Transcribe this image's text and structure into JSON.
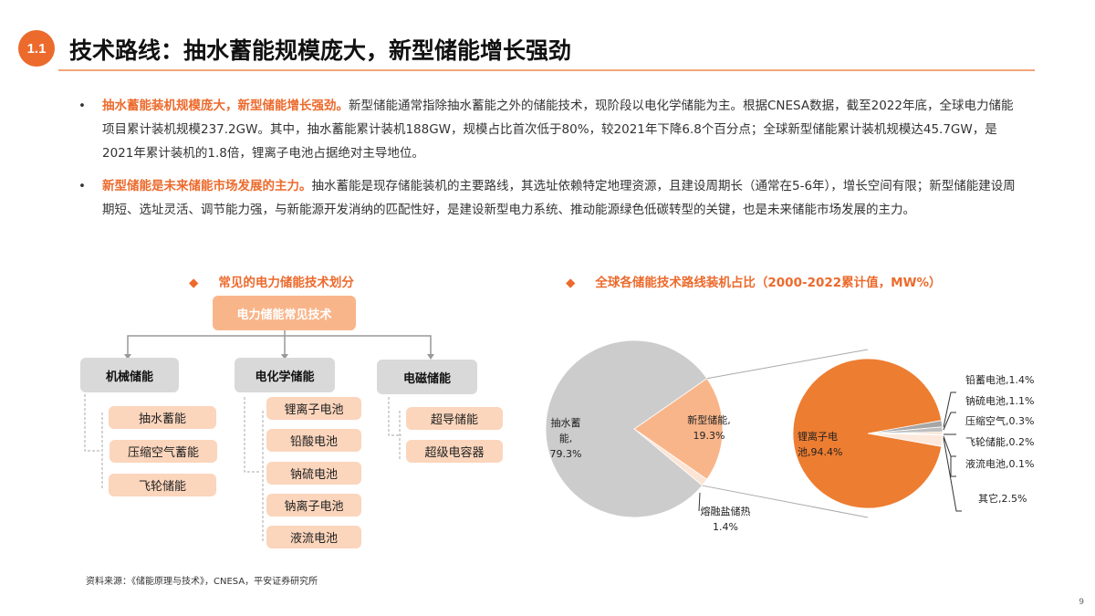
{
  "header": {
    "badge": "1.1",
    "title": "技术路线：抽水蓄能规模庞大，新型储能增长强劲"
  },
  "bullets": [
    {
      "marker": "•",
      "highlight": "抽水蓄能装机规模庞大，新型储能增长强劲。",
      "text": "新型储能通常指除抽水蓄能之外的储能技术，现阶段以电化学储能为主。根据CNESA数据，截至2022年底，全球电力储能项目累计装机规模237.2GW。其中，抽水蓄能累计装机188GW，规模占比首次低于80%，较2021年下降6.8个百分点；全球新型储能累计装机规模达45.7GW，是2021年累计装机的1.8倍，锂离子电池占据绝对主导地位。"
    },
    {
      "marker": "•",
      "highlight": "新型储能是未来储能市场发展的主力。",
      "text": "抽水蓄能是现存储能装机的主要路线，其选址依赖特定地理资源，且建设周期长（通常在5-6年），增长空间有限；新型储能建设周期短、选址灵活、调节能力强，与新能源开发消纳的匹配性好，是建设新型电力系统、推动能源绿色低碳转型的关键，也是未来储能市场发展的主力。"
    }
  ],
  "diagram": {
    "marker": "◆",
    "title": "常见的电力储能技术划分",
    "root": "电力储能常见技术",
    "categories": [
      {
        "label": "机械储能",
        "items": [
          "抽水蓄能",
          "压缩空气蓄能",
          "飞轮储能"
        ]
      },
      {
        "label": "电化学储能",
        "items": [
          "锂离子电池",
          "铅酸电池",
          "钠硫电池",
          "钠离子电池",
          "液流电池"
        ]
      },
      {
        "label": "电磁储能",
        "items": [
          "超导储能",
          "超级电容器"
        ]
      }
    ]
  },
  "chart_data": {
    "type": "pie-of-pie",
    "marker": "◆",
    "title": "全球各储能技术路线装机占比（2000-2022累计值，MW%）",
    "main": [
      {
        "name": "抽水蓄能",
        "label": "抽水蓄能,",
        "value": 79.3,
        "color": "#cccccc"
      },
      {
        "name": "新型储能",
        "label": "新型储能,",
        "value": 19.3,
        "color": "#f9b58a"
      },
      {
        "name": "熔融盐储热",
        "label": "熔融盐储热",
        "value": 1.4,
        "color": "#fce4d4"
      }
    ],
    "secondary": [
      {
        "name": "锂离子电池",
        "value": 94.4,
        "color": "#ed7d31"
      },
      {
        "name": "铅蓄电池",
        "value": 1.4,
        "color": "#a6a6a6"
      },
      {
        "name": "钠硫电池",
        "value": 1.1,
        "color": "#bfbfbf"
      },
      {
        "name": "压缩空气",
        "value": 0.3,
        "color": "#f4b183"
      },
      {
        "name": "飞轮储能",
        "value": 0.2,
        "color": "#f8cbad"
      },
      {
        "name": "液流电池",
        "value": 0.1,
        "color": "#fbe5d6"
      },
      {
        "name": "其它",
        "value": 2.5,
        "color": "#fde9dc"
      }
    ],
    "secondary_labels": [
      "锂离子电池,94.4%",
      "铅蓄电池,1.4%",
      "钠硫电池,1.1%",
      "压缩空气,0.3%",
      "飞轮储能,0.2%",
      "液流电池,0.1%",
      "其它,2.5%"
    ],
    "main_value_labels": [
      "79.3%",
      "19.3%",
      "1.4%"
    ]
  },
  "footer": {
    "source": "资料来源：《储能原理与技术》，CNESA，平安证券研究所",
    "page": "9"
  }
}
